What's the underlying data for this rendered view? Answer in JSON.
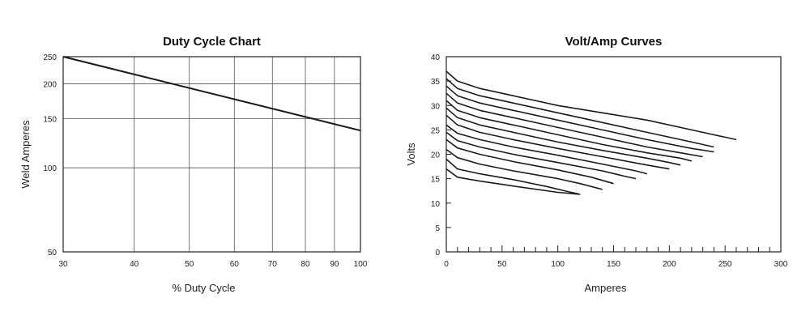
{
  "chart_data": [
    {
      "type": "line",
      "title": "Duty Cycle Chart",
      "xlabel": "% Duty Cycle",
      "ylabel": "Weld Amperes",
      "x_scale": "log",
      "y_scale": "log",
      "xlim": [
        30,
        100
      ],
      "ylim": [
        50,
        250
      ],
      "x_ticks": [
        30,
        40,
        50,
        60,
        70,
        80,
        90,
        100
      ],
      "y_ticks": [
        50,
        100,
        150,
        200,
        250
      ],
      "grid": true,
      "legend": "none",
      "line_color": "#1a1a1a",
      "series": [
        {
          "x": [
            30,
            100
          ],
          "y": [
            250,
            136
          ]
        }
      ]
    },
    {
      "type": "line",
      "title": "Volt/Amp Curves",
      "xlabel": "Amperes",
      "ylabel": "Volts",
      "xlim": [
        0,
        300
      ],
      "ylim": [
        0,
        40
      ],
      "x_ticks": [
        0,
        50,
        100,
        150,
        200,
        250,
        300
      ],
      "y_ticks": [
        0,
        5,
        10,
        15,
        20,
        25,
        30,
        35,
        40
      ],
      "x_minor_step": 10,
      "grid": false,
      "legend": "none",
      "line_color": "#1a1a1a",
      "series": [
        {
          "x": [
            0,
            10,
            30,
            60,
            100,
            140,
            180,
            220,
            250,
            260
          ],
          "y": [
            37,
            35,
            33.5,
            32,
            30,
            28.5,
            27,
            25,
            23.5,
            23
          ]
        },
        {
          "x": [
            0,
            10,
            30,
            60,
            100,
            140,
            180,
            220,
            240
          ],
          "y": [
            35.5,
            33.5,
            32,
            30.5,
            28.5,
            26.5,
            24.5,
            22.5,
            21.5
          ]
        },
        {
          "x": [
            0,
            10,
            30,
            60,
            100,
            140,
            180,
            220,
            240
          ],
          "y": [
            34,
            32,
            30.5,
            29,
            27,
            25,
            23,
            21.2,
            20.5
          ]
        },
        {
          "x": [
            0,
            10,
            30,
            60,
            100,
            140,
            180,
            210,
            230
          ],
          "y": [
            32.5,
            30.5,
            29,
            27.5,
            25.5,
            23.5,
            21.5,
            20.3,
            19.5
          ]
        },
        {
          "x": [
            0,
            10,
            30,
            60,
            100,
            140,
            180,
            210,
            220
          ],
          "y": [
            31,
            29,
            27.5,
            26,
            24,
            22,
            20.3,
            19.2,
            18.6
          ]
        },
        {
          "x": [
            0,
            10,
            30,
            60,
            100,
            140,
            180,
            200,
            210
          ],
          "y": [
            29.5,
            27.5,
            26,
            24.5,
            22.5,
            20.8,
            19.2,
            18.3,
            17.8
          ]
        },
        {
          "x": [
            0,
            10,
            30,
            60,
            100,
            140,
            180,
            200
          ],
          "y": [
            28,
            26,
            24.5,
            23,
            21.2,
            19.5,
            17.8,
            17
          ]
        },
        {
          "x": [
            0,
            10,
            30,
            60,
            100,
            140,
            170,
            180
          ],
          "y": [
            26,
            24.3,
            23,
            21.5,
            19.8,
            18,
            16.6,
            16
          ]
        },
        {
          "x": [
            0,
            10,
            30,
            60,
            100,
            140,
            160,
            170
          ],
          "y": [
            24.5,
            22.8,
            21.5,
            20,
            18.3,
            16.6,
            15.5,
            15
          ]
        },
        {
          "x": [
            0,
            10,
            30,
            60,
            100,
            130,
            150
          ],
          "y": [
            23,
            21.3,
            20,
            18.5,
            16.8,
            15.3,
            14
          ]
        },
        {
          "x": [
            0,
            10,
            30,
            60,
            100,
            120,
            140
          ],
          "y": [
            21,
            19.3,
            18,
            16.6,
            15,
            14,
            12.8
          ]
        },
        {
          "x": [
            0,
            10,
            30,
            60,
            90,
            110,
            120
          ],
          "y": [
            19,
            17,
            16,
            14.8,
            13.4,
            12.3,
            11.8
          ]
        },
        {
          "x": [
            0,
            10,
            30,
            60,
            100,
            120
          ],
          "y": [
            17,
            15.3,
            14.5,
            13.5,
            12.2,
            11.8
          ]
        }
      ]
    }
  ]
}
